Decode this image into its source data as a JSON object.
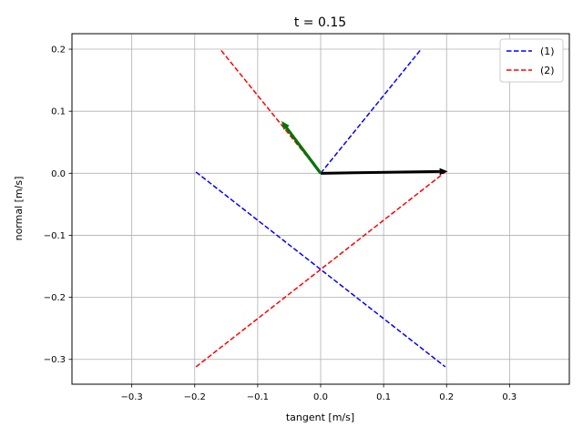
{
  "chart_data": {
    "type": "line",
    "title": "t = 0.15",
    "xlabel": "tangent [m/s]",
    "ylabel": "normal [m/s]",
    "xlim": [
      -0.395,
      0.395
    ],
    "ylim": [
      -0.34,
      0.225
    ],
    "xticks": [
      -0.3,
      -0.2,
      -0.1,
      0.0,
      0.1,
      0.2,
      0.3
    ],
    "xtick_labels": [
      "−0.3",
      "−0.2",
      "−0.1",
      "0.0",
      "0.1",
      "0.2",
      "0.3"
    ],
    "yticks": [
      0.2,
      0.1,
      0.0,
      -0.1,
      -0.2,
      -0.3
    ],
    "ytick_labels": [
      "0.2",
      "0.1",
      "0.0",
      "−0.1",
      "−0.2",
      "−0.3"
    ],
    "grid": true,
    "legend_position": "top-right",
    "series": [
      {
        "name": "(1)",
        "color": "#0000ff",
        "style": "dashed",
        "segments": [
          [
            [
              0.0,
              0.0
            ],
            [
              0.158,
              0.198
            ]
          ],
          [
            [
              -0.198,
              0.002
            ],
            [
              0.198,
              -0.312
            ]
          ]
        ]
      },
      {
        "name": "(2)",
        "color": "#ff0000",
        "style": "dashed",
        "segments": [
          [
            [
              0.0,
              0.0
            ],
            [
              -0.158,
              0.198
            ]
          ],
          [
            [
              -0.198,
              -0.312
            ],
            [
              0.198,
              0.002
            ]
          ]
        ]
      }
    ],
    "arrows": [
      {
        "from": [
          0.0,
          0.0
        ],
        "to": [
          0.202,
          0.003
        ],
        "color": "#000000"
      },
      {
        "from": [
          0.0,
          0.0
        ],
        "to": [
          -0.062,
          0.084
        ],
        "color": "#000000"
      },
      {
        "from": [
          0.0,
          0.0
        ],
        "to": [
          -0.062,
          0.084
        ],
        "color": "#007700"
      }
    ]
  }
}
